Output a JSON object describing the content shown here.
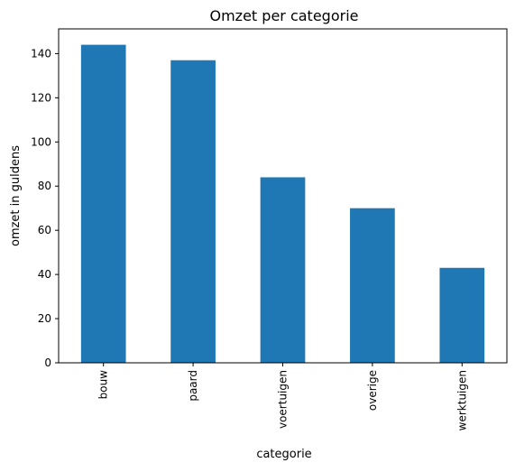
{
  "chart_data": {
    "type": "bar",
    "title": "Omzet per categorie",
    "xlabel": "categorie",
    "ylabel": "omzet in guldens",
    "categories": [
      "bouw",
      "paard",
      "voertuigen",
      "overige",
      "werktuigen"
    ],
    "values": [
      144,
      137,
      84,
      70,
      43
    ],
    "ylim": [
      0,
      151.2
    ],
    "yticks": [
      0,
      20,
      40,
      60,
      80,
      100,
      120,
      140
    ],
    "grid": false,
    "bar_color": "#1f77b4"
  }
}
